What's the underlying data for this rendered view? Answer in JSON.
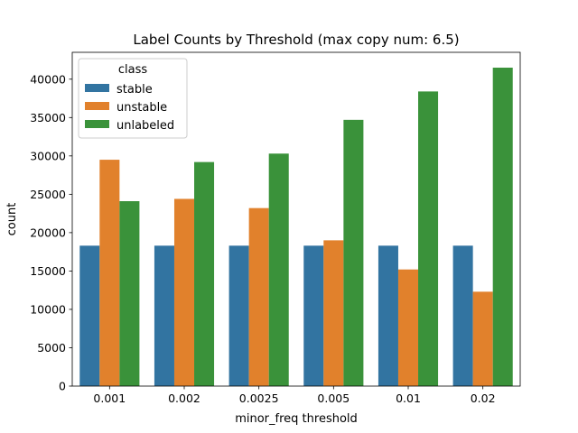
{
  "chart_data": {
    "type": "bar",
    "title": "Label Counts by Threshold (max copy num: 6.5)",
    "xlabel": "minor_freq threshold",
    "ylabel": "count",
    "ylim": [
      0,
      43500
    ],
    "yticks": [
      0,
      5000,
      10000,
      15000,
      20000,
      25000,
      30000,
      35000,
      40000
    ],
    "grid": false,
    "legend": {
      "title": "class",
      "position": "top-left"
    },
    "categories": [
      "0.001",
      "0.002",
      "0.0025",
      "0.005",
      "0.01",
      "0.02"
    ],
    "series": [
      {
        "name": "stable",
        "color": "#3274a1",
        "values": [
          18300,
          18300,
          18300,
          18300,
          18300,
          18300
        ]
      },
      {
        "name": "unstable",
        "color": "#e1812c",
        "values": [
          29500,
          24400,
          23200,
          19000,
          15200,
          12300
        ]
      },
      {
        "name": "unlabeled",
        "color": "#3a923a",
        "values": [
          24100,
          29200,
          30300,
          34700,
          38400,
          41500
        ]
      }
    ]
  }
}
